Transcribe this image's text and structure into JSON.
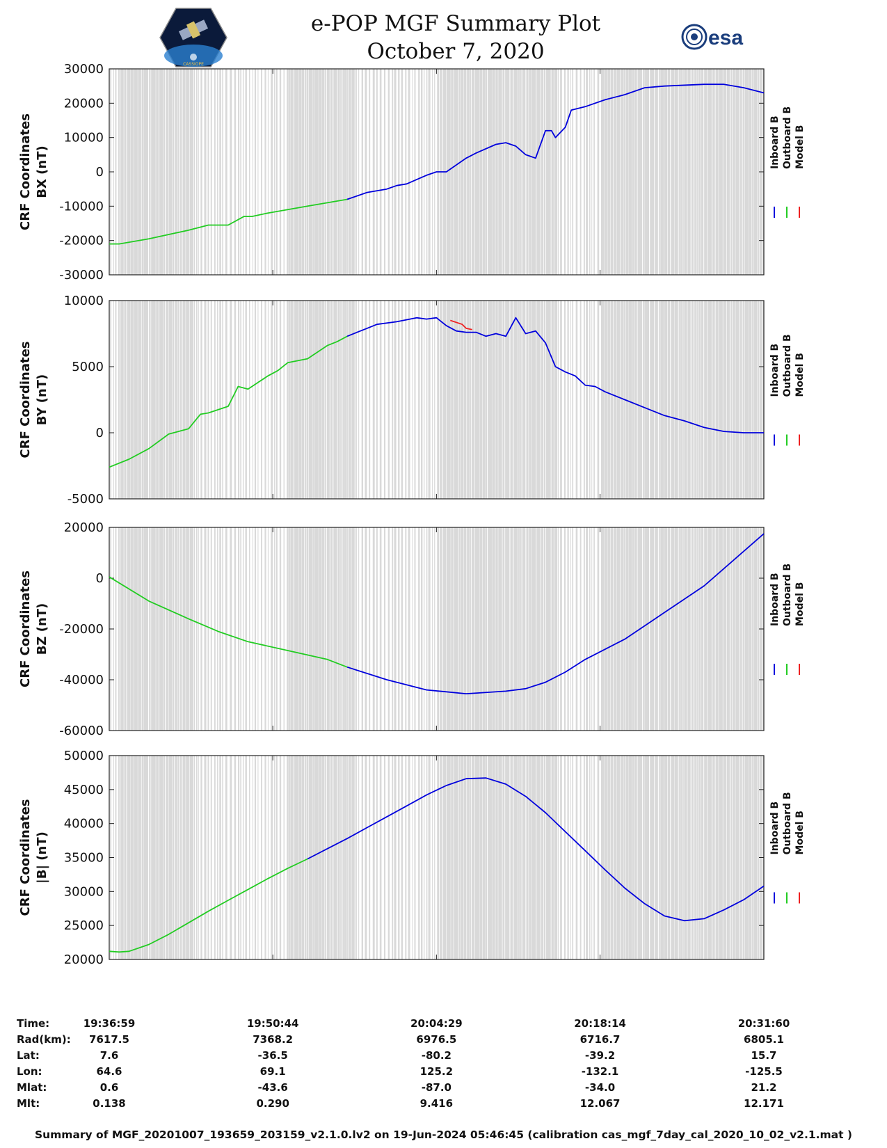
{
  "title": {
    "line1": "e-POP MGF Summary Plot",
    "line2": "October 7, 2020"
  },
  "logos": {
    "mission": "CASSIOPE",
    "agency": "esa"
  },
  "colors": {
    "inboard": "#0000dd",
    "outboard": "#22cc22",
    "model": "#ee2222",
    "gap_shade": "#d9d9d9"
  },
  "time_axis": {
    "start_s": 0,
    "end_s": 3301,
    "tick_s": [
      0,
      825,
      1650,
      2475,
      3301
    ],
    "tick_labels": [
      "19:36:59",
      "19:50:44",
      "20:04:29",
      "20:18:14",
      "20:31:60"
    ]
  },
  "gap_bands_s": [
    [
      40,
      420
    ],
    [
      880,
      1230
    ],
    [
      1650,
      2250
    ],
    [
      2480,
      3300
    ]
  ],
  "chart_data": [
    {
      "type": "line",
      "ylabel1": "CRF Coordinates",
      "ylabel2": "BX (nT)",
      "ylim": [
        -30000,
        30000
      ],
      "yticks": [
        -30000,
        -20000,
        -10000,
        0,
        10000,
        20000,
        30000
      ],
      "legend": [
        "Inboard B",
        "Outboard B",
        "Model B"
      ],
      "series": [
        {
          "name": "Outboard B",
          "x": [
            0,
            50,
            200,
            400,
            500,
            600,
            680,
            720,
            800,
            900,
            1000,
            1100,
            1200
          ],
          "y": [
            -21000,
            -21000,
            -19500,
            -17000,
            -15500,
            -15500,
            -13000,
            -13000,
            -12000,
            -11000,
            -10000,
            -9000,
            -8000
          ]
        },
        {
          "name": "Inboard B",
          "x": [
            1200,
            1300,
            1400,
            1450,
            1500,
            1600,
            1650,
            1700,
            1800,
            1850,
            1950,
            2000,
            2050,
            2100,
            2150,
            2200,
            2230,
            2250,
            2300,
            2330,
            2400,
            2500,
            2600,
            2700,
            2800,
            3000,
            3100,
            3200,
            3301
          ],
          "y": [
            -8000,
            -6000,
            -5000,
            -4000,
            -3500,
            -1000,
            0,
            0,
            4000,
            5500,
            8000,
            8500,
            7500,
            5000,
            4000,
            12000,
            12000,
            10000,
            13000,
            18000,
            19000,
            21000,
            22500,
            24500,
            25000,
            25500,
            25500,
            24500,
            23000
          ]
        }
      ]
    },
    {
      "type": "line",
      "ylabel1": "CRF Coordinates",
      "ylabel2": "BY (nT)",
      "ylim": [
        -5000,
        10000
      ],
      "yticks": [
        -5000,
        0,
        5000,
        10000
      ],
      "legend": [
        "Inboard B",
        "Outboard B",
        "Model B"
      ],
      "series": [
        {
          "name": "Outboard B",
          "x": [
            0,
            100,
            200,
            300,
            400,
            460,
            500,
            600,
            650,
            700,
            750,
            800,
            850,
            900,
            1000,
            1100,
            1150,
            1200
          ],
          "y": [
            -2600,
            -2000,
            -1200,
            -100,
            300,
            1400,
            1500,
            2000,
            3500,
            3300,
            3800,
            4300,
            4700,
            5300,
            5600,
            6600,
            6900,
            7300
          ]
        },
        {
          "name": "Inboard B",
          "x": [
            1200,
            1250,
            1300,
            1350,
            1450,
            1550,
            1600,
            1650,
            1700,
            1750,
            1800,
            1850,
            1900,
            1950,
            2000,
            2050,
            2100,
            2150,
            2200,
            2250,
            2300,
            2350,
            2400,
            2450,
            2500,
            2600,
            2700,
            2800,
            2900,
            3000,
            3100,
            3200,
            3301
          ],
          "y": [
            7300,
            7600,
            7900,
            8200,
            8400,
            8700,
            8600,
            8700,
            8100,
            7700,
            7600,
            7600,
            7300,
            7500,
            7300,
            8700,
            7500,
            7700,
            6800,
            5000,
            4600,
            4300,
            3600,
            3500,
            3100,
            2500,
            1900,
            1300,
            900,
            400,
            100,
            0,
            0
          ]
        },
        {
          "name": "Model B",
          "x": [
            1720,
            1780,
            1800,
            1830
          ],
          "y": [
            8500,
            8200,
            7900,
            7800
          ]
        }
      ]
    },
    {
      "type": "line",
      "ylabel1": "CRF Coordinates",
      "ylabel2": "BZ (nT)",
      "ylim": [
        -60000,
        20000
      ],
      "yticks": [
        -60000,
        -40000,
        -20000,
        0,
        20000
      ],
      "legend": [
        "Inboard B",
        "Outboard B",
        "Model B"
      ],
      "series": [
        {
          "name": "Outboard B",
          "x": [
            0,
            200,
            400,
            550,
            700,
            900,
            1100,
            1200
          ],
          "y": [
            500,
            -9000,
            -16000,
            -21000,
            -25000,
            -28500,
            -32000,
            -35000
          ]
        },
        {
          "name": "Inboard B",
          "x": [
            1200,
            1400,
            1600,
            1800,
            2000,
            2100,
            2200,
            2300,
            2400,
            2500,
            2600,
            2800,
            3000,
            3301
          ],
          "y": [
            -35000,
            -40000,
            -44000,
            -45500,
            -44500,
            -43500,
            -41000,
            -37000,
            -32000,
            -28000,
            -24000,
            -13500,
            -3000,
            17500
          ]
        }
      ]
    },
    {
      "type": "line",
      "ylabel1": "CRF Coordinates",
      "ylabel2": "|B| (nT)",
      "ylim": [
        20000,
        50000
      ],
      "yticks": [
        20000,
        25000,
        30000,
        35000,
        40000,
        45000,
        50000
      ],
      "legend": [
        "Inboard B",
        "Outboard B",
        "Model B"
      ],
      "series": [
        {
          "name": "Outboard B",
          "x": [
            0,
            50,
            100,
            200,
            300,
            400,
            500,
            600,
            700,
            800,
            900,
            1000
          ],
          "y": [
            21200,
            21100,
            21200,
            22200,
            23700,
            25400,
            27100,
            28700,
            30300,
            31900,
            33400,
            34800
          ]
        },
        {
          "name": "Inboard B",
          "x": [
            1000,
            1100,
            1200,
            1300,
            1400,
            1500,
            1600,
            1700,
            1800,
            1900,
            2000,
            2100,
            2200,
            2300,
            2400,
            2500,
            2600,
            2700,
            2800,
            2900,
            3000,
            3100,
            3200,
            3301
          ],
          "y": [
            34800,
            36300,
            37800,
            39400,
            41000,
            42600,
            44200,
            45600,
            46600,
            46700,
            45800,
            44000,
            41600,
            38800,
            36000,
            33200,
            30500,
            28200,
            26400,
            25700,
            26000,
            27300,
            28800,
            30800
          ]
        }
      ]
    }
  ],
  "ephemeris": {
    "rows": [
      {
        "label": "Time:",
        "values": [
          "19:36:59",
          "19:50:44",
          "20:04:29",
          "20:18:14",
          "20:31:60"
        ]
      },
      {
        "label": "Rad(km):",
        "values": [
          "7617.5",
          "7368.2",
          "6976.5",
          "6716.7",
          "6805.1"
        ]
      },
      {
        "label": "Lat:",
        "values": [
          "7.6",
          "-36.5",
          "-80.2",
          "-39.2",
          "15.7"
        ]
      },
      {
        "label": "Lon:",
        "values": [
          "64.6",
          "69.1",
          "125.2",
          "-132.1",
          "-125.5"
        ]
      },
      {
        "label": "Mlat:",
        "values": [
          "0.6",
          "-43.6",
          "-87.0",
          "-34.0",
          "21.2"
        ]
      },
      {
        "label": "Mlt:",
        "values": [
          "0.138",
          "0.290",
          "9.416",
          "12.067",
          "12.171"
        ]
      }
    ]
  },
  "footer": "Summary of MGF_20201007_193659_203159_v2.1.0.lv2 on 19-Jun-2024 05:46:45 (calibration cas_mgf_7day_cal_2020_10_02_v2.1.mat )"
}
